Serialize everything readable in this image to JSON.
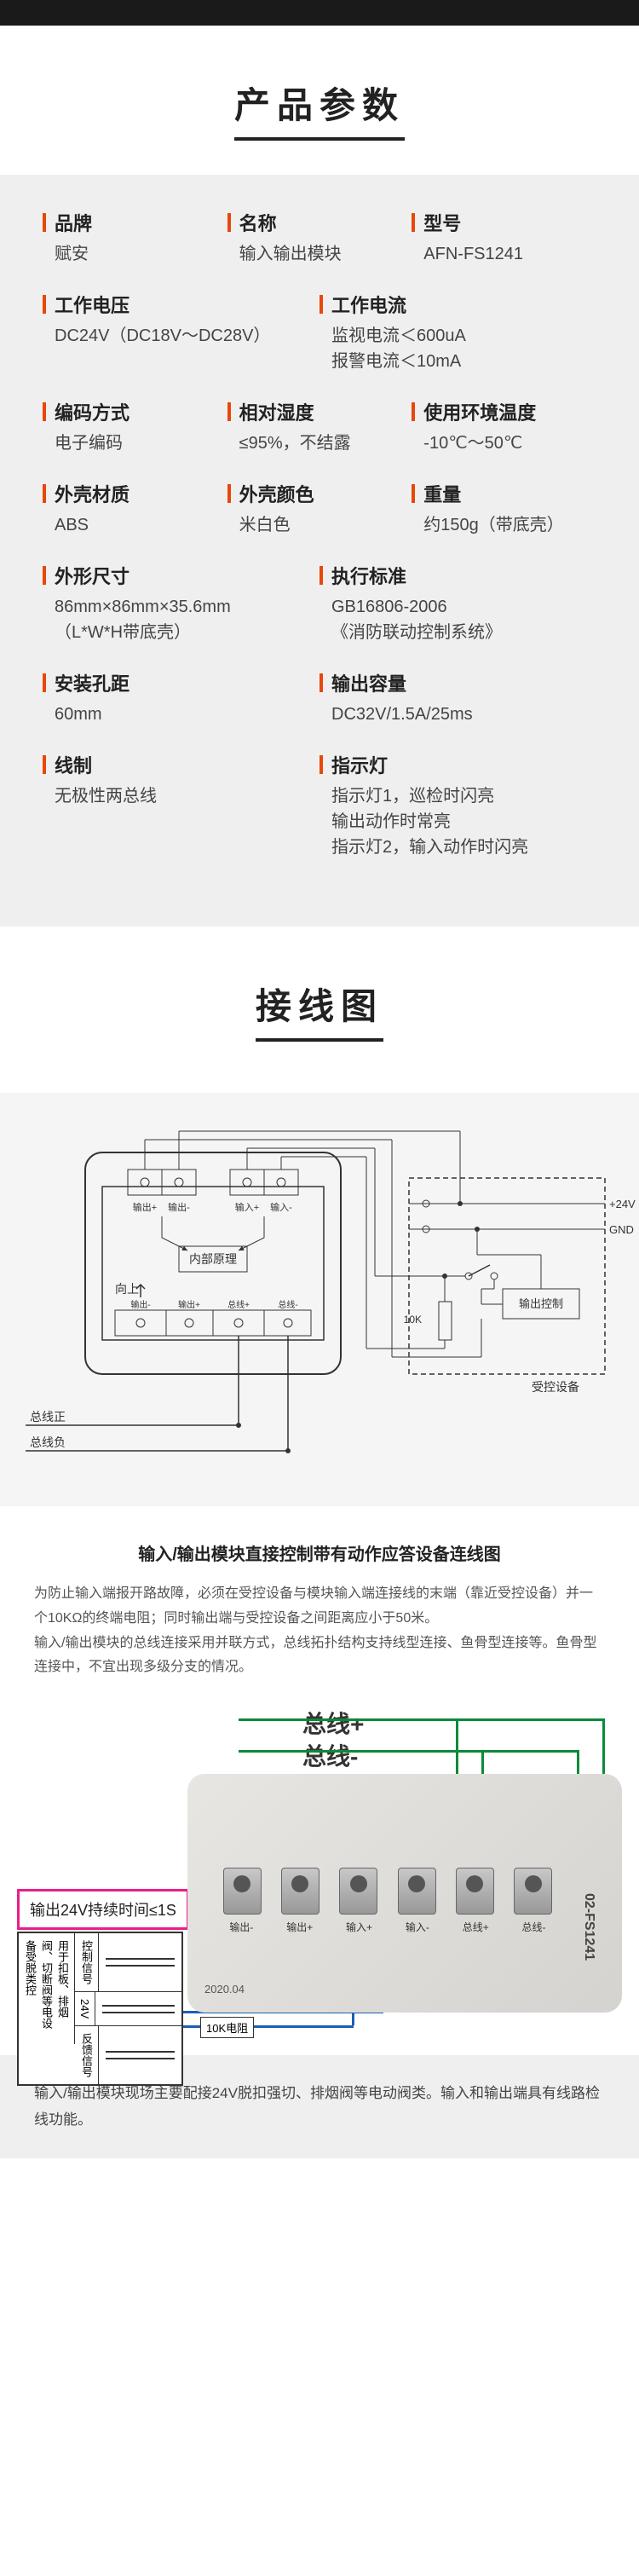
{
  "sections": {
    "specs_title": "产品参数",
    "wiring_title": "接线图"
  },
  "specs": [
    {
      "label": "品牌",
      "value": "赋安",
      "w": "w33"
    },
    {
      "label": "名称",
      "value": "输入输出模块",
      "w": "w33"
    },
    {
      "label": "型号",
      "value": "AFN-FS1241",
      "w": "w33"
    },
    {
      "label": "工作电压",
      "value": "DC24V（DC18V～DC28V）",
      "w": "w50"
    },
    {
      "label": "工作电流",
      "value": "监视电流＜600uA\n报警电流＜10mA",
      "w": "w50"
    },
    {
      "label": "编码方式",
      "value": "电子编码",
      "w": "w33"
    },
    {
      "label": "相对湿度",
      "value": "≤95%，不结露",
      "w": "w33"
    },
    {
      "label": "使用环境温度",
      "value": "-10℃～50℃",
      "w": "w33"
    },
    {
      "label": "外壳材质",
      "value": "ABS",
      "w": "w33"
    },
    {
      "label": "外壳颜色",
      "value": "米白色",
      "w": "w33"
    },
    {
      "label": "重量",
      "value": "约150g（带底壳）",
      "w": "w33"
    },
    {
      "label": "外形尺寸",
      "value": "86mm×86mm×35.6mm\n（L*W*H带底壳）",
      "w": "w50"
    },
    {
      "label": "执行标准",
      "value": "GB16806-2006\n《消防联动控制系统》",
      "w": "w50"
    },
    {
      "label": "安装孔距",
      "value": "60mm",
      "w": "w50"
    },
    {
      "label": "输出容量",
      "value": "DC32V/1.5A/25ms",
      "w": "w50"
    },
    {
      "label": "线制",
      "value": "无极性两总线",
      "w": "w50"
    },
    {
      "label": "指示灯",
      "value": "指示灯1，巡检时闪亮\n输出动作时常亮\n指示灯2，输入动作时闪亮",
      "w": "w50"
    }
  ],
  "wiring": {
    "subtitle": "输入/输出模块直接控制带有动作应答设备连线图",
    "description": "为防止输入端报开路故障，必须在受控设备与模块输入端连接线的末端（靠近受控设备）并一个10KΩ的终端电阻；同时输出端与受控设备之间距离应小于50米。\n输入/输出模块的总线连接采用并联方式，总线拓扑结构支持线型连接、鱼骨型连接等。鱼骨型连接中，不宜出现多级分支的情况。",
    "diagram_labels": {
      "internal": "内部原理",
      "up": "向上",
      "bus_pos": "总线正",
      "bus_neg": "总线负",
      "out_pos": "输出+",
      "out_neg": "输出-",
      "in_pos": "输入+",
      "in_neg": "输入-",
      "line_pos": "总线+",
      "line_neg": "总线-",
      "v24": "+24V",
      "gnd": "GND",
      "r10k": "10K",
      "out_ctrl": "输出控制",
      "ctrl_dev": "受控设备"
    },
    "photo": {
      "bus_plus": "总线+",
      "bus_minus": "总线-",
      "pink_box": "输出24V持续时间≤1S",
      "control_signal": "控制信号",
      "v24_text": "24V",
      "desc_text": "用于扣板、排烟阀、切断阀等电设备受脱类控",
      "feedback": "反馈信号",
      "resistor": "10K电阻",
      "model": "02-FS1241",
      "date": "2020.04",
      "terminals": [
        "输出-",
        "输出+",
        "输入+",
        "输入-",
        "总线+",
        "总线-"
      ]
    },
    "footer_text": "输入/输出模块现场主要配接24V脱扣强切、排烟阀等电动阀类。输入和输出端具有线路检线功能。"
  },
  "colors": {
    "accent": "#e94709",
    "green": "#0a8a3a",
    "blue": "#1a5fb4",
    "pink": "#e91e8c",
    "gray_bg": "#efefef"
  }
}
